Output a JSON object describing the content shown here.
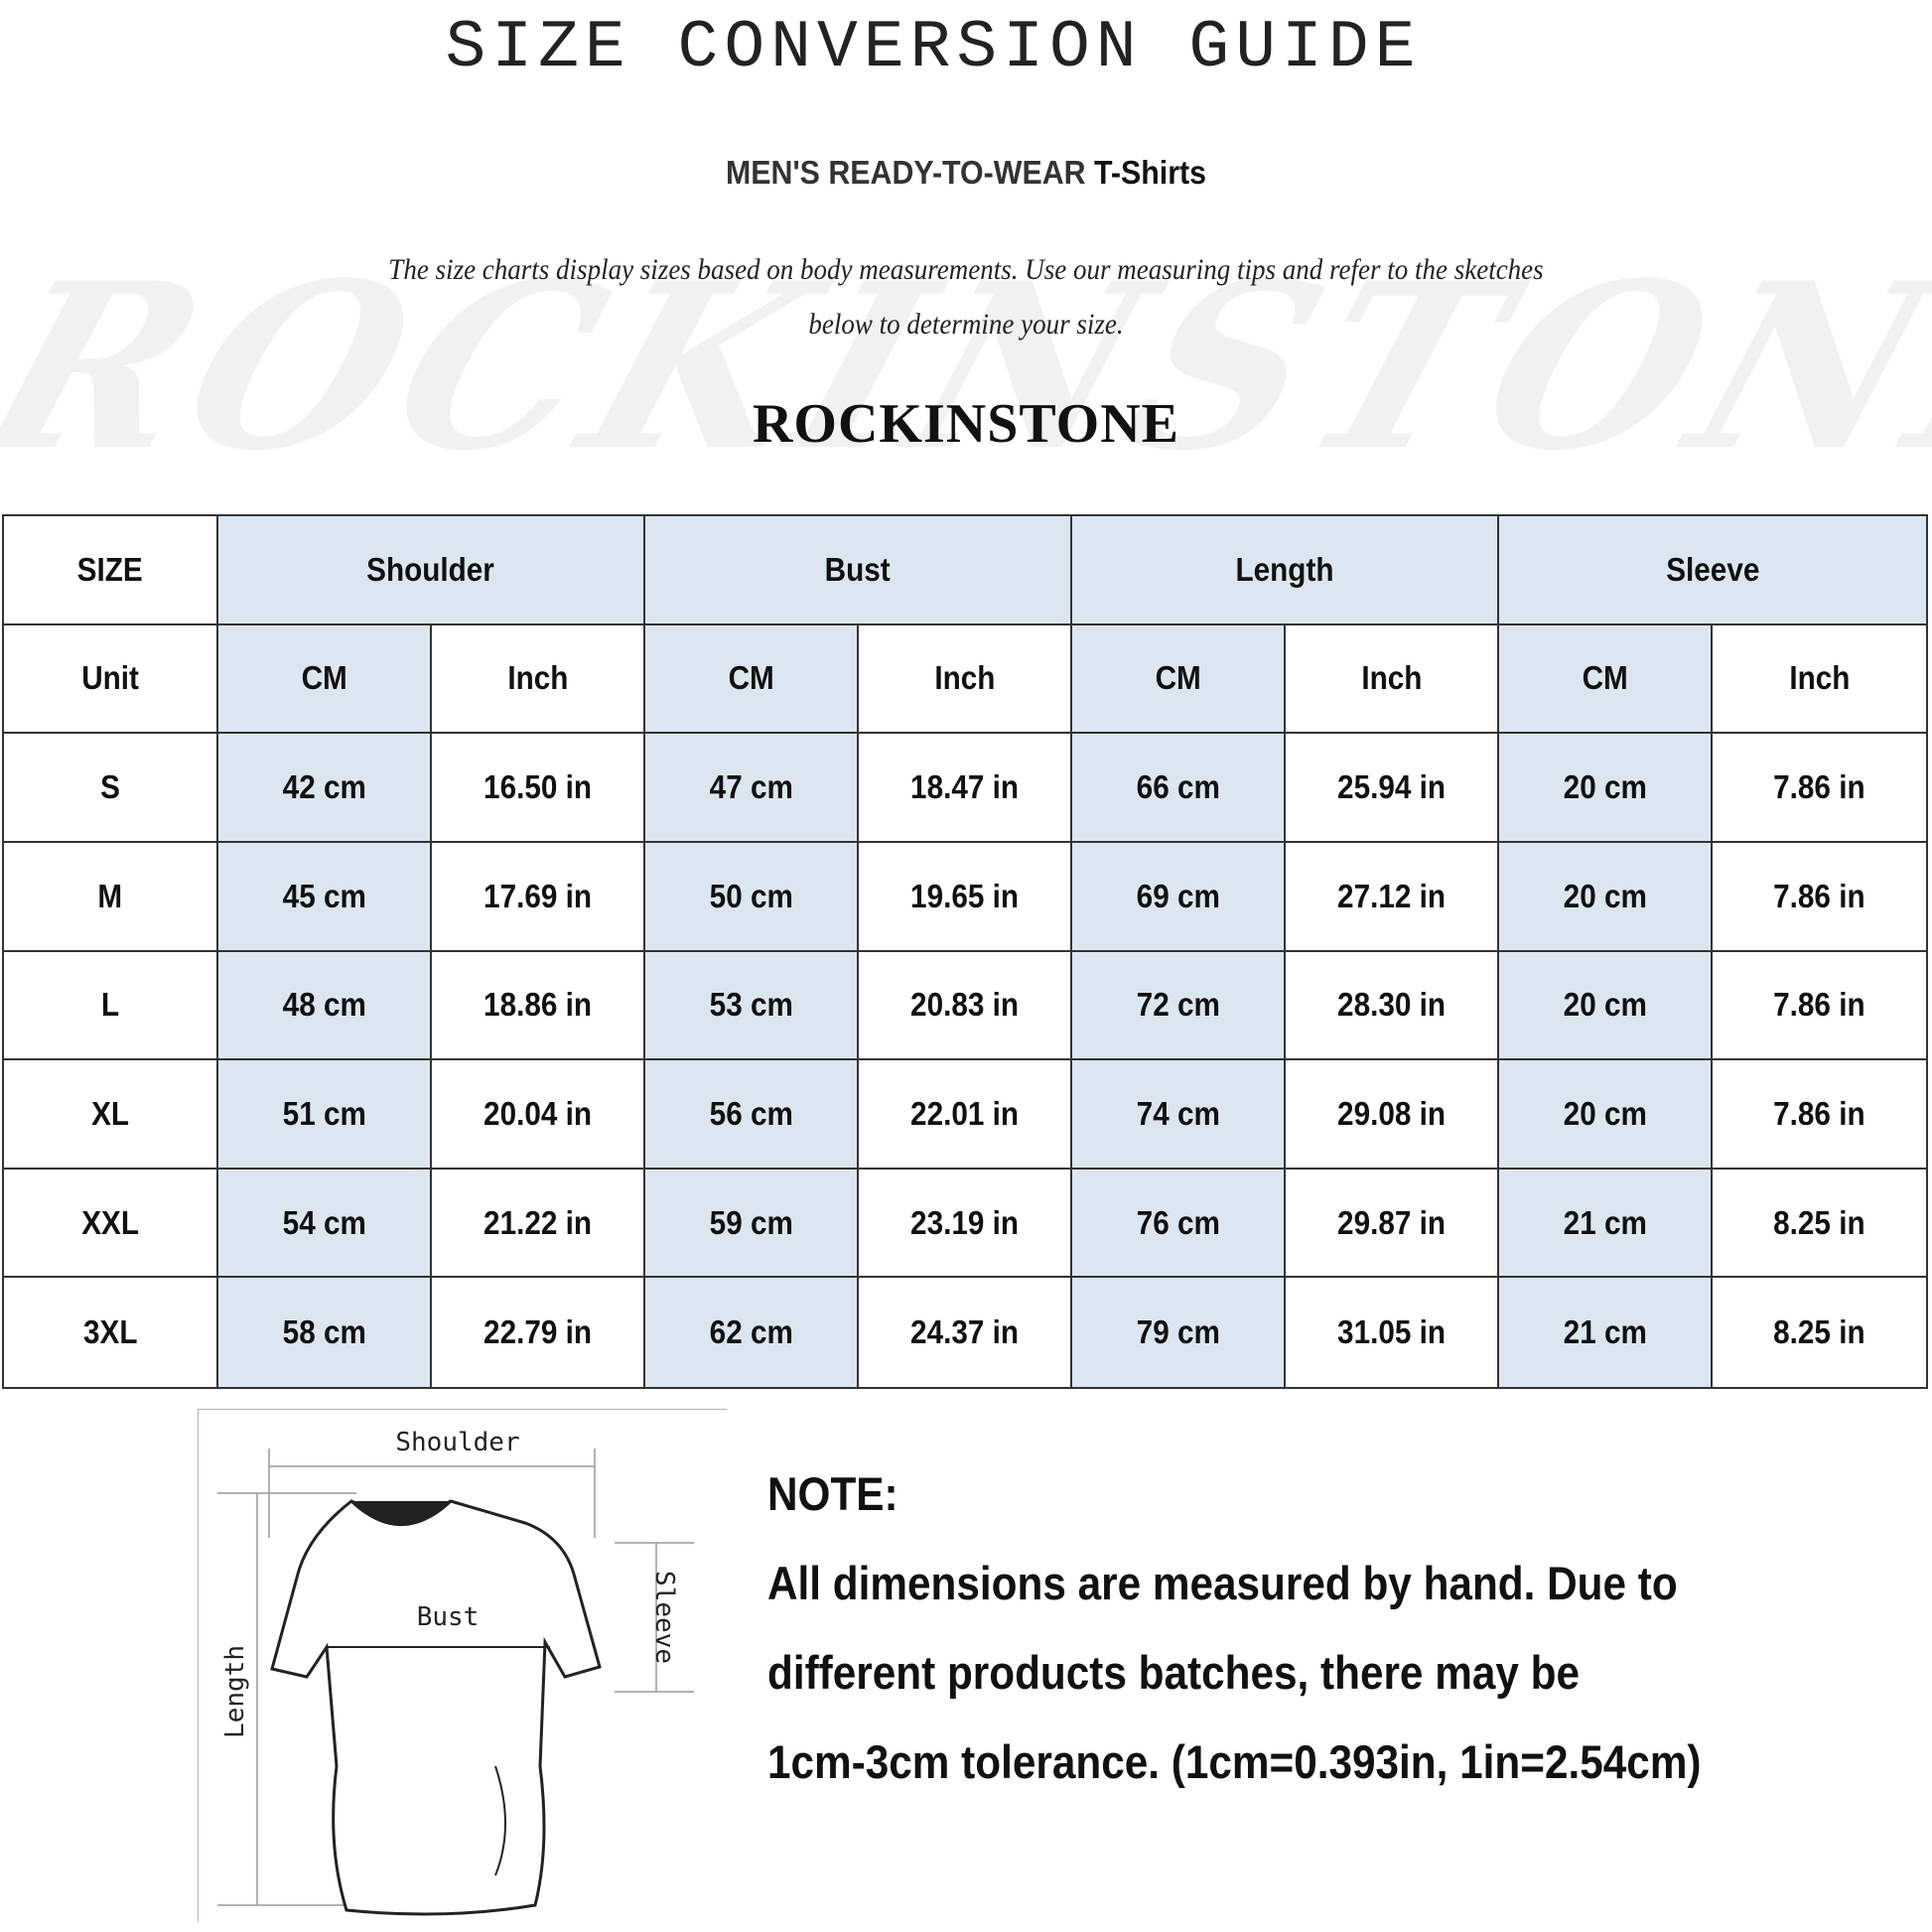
{
  "header": {
    "title": "SIZE CONVERSION GUIDE",
    "subtitle_main": "MEN'S READY-TO-WEAR",
    "subtitle_product": "T-Shirts",
    "intro_line1": "The size charts display sizes based on body measurements. Use our measuring tips and refer to the sketches",
    "intro_line2": "below to determine your size.",
    "brand": "ROCKINSTONE",
    "watermark": "ROCKINSTONE"
  },
  "table": {
    "size_label": "SIZE",
    "unit_label": "Unit",
    "groups": [
      "Shoulder",
      "Bust",
      "Length",
      "Sleeve"
    ],
    "units": [
      "CM",
      "Inch",
      "CM",
      "Inch",
      "CM",
      "Inch",
      "CM",
      "Inch"
    ],
    "rows": [
      {
        "size": "S",
        "values": [
          "42 cm",
          "16.50 in",
          "47 cm",
          "18.47  in",
          "66 cm",
          "25.94  in",
          "20 cm",
          "7.86  in"
        ]
      },
      {
        "size": "M",
        "values": [
          "45 cm",
          "17.69  in",
          "50 cm",
          "19.65  in",
          "69 cm",
          "27.12  in",
          "20 cm",
          "7.86  in"
        ]
      },
      {
        "size": "L",
        "values": [
          "48 cm",
          "18.86  in",
          "53 cm",
          "20.83  in",
          "72 cm",
          "28.30  in",
          "20 cm",
          "7.86  in"
        ]
      },
      {
        "size": "XL",
        "values": [
          "51 cm",
          "20.04  in",
          "56 cm",
          "22.01  in",
          "74 cm",
          "29.08  in",
          "20 cm",
          "7.86  in"
        ]
      },
      {
        "size": "XXL",
        "values": [
          "54 cm",
          "21.22  in",
          "59 cm",
          "23.19  in",
          "76 cm",
          "29.87  in",
          "21 cm",
          "8.25  in"
        ]
      },
      {
        "size": "3XL",
        "values": [
          "58 cm",
          "22.79  in",
          "62 cm",
          "24.37  in",
          "79 cm",
          "31.05  in",
          "21 cm",
          "8.25  in"
        ]
      }
    ],
    "highlight_color": "#dce6f1"
  },
  "sketch": {
    "shoulder": "Shoulder",
    "bust": "Bust",
    "sleeve": "Sleeve",
    "length": "Length"
  },
  "note": {
    "heading": "NOTE:",
    "line1": "All dimensions are measured by hand. Due to",
    "line2": "different products batches, there may be",
    "line3": "1cm-3cm tolerance. (1cm=0.393in, 1in=2.54cm)"
  }
}
